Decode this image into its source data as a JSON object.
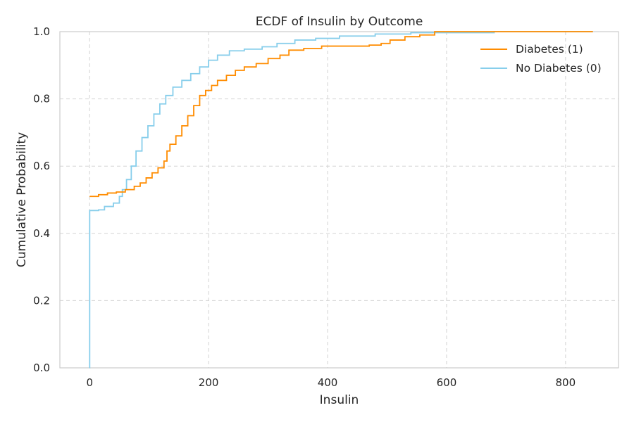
{
  "chart_data": {
    "type": "line",
    "title": "ECDF of Insulin by Outcome",
    "xlabel": "Insulin",
    "ylabel": "Cumulative Probability",
    "xlim": [
      -50,
      889
    ],
    "ylim": [
      0,
      1.0
    ],
    "xticks": [
      0,
      200,
      400,
      600,
      800
    ],
    "yticks": [
      0.0,
      0.2,
      0.4,
      0.6,
      0.8,
      1.0
    ],
    "xtick_labels": [
      "0",
      "200",
      "400",
      "600",
      "800"
    ],
    "ytick_labels": [
      "0.0",
      "0.2",
      "0.4",
      "0.6",
      "0.8",
      "1.0"
    ],
    "grid": true,
    "legend_position": "top-right",
    "series": [
      {
        "name": "Diabetes (1)",
        "color": "#ff8c00",
        "step": "post",
        "points": [
          [
            0,
            0.51
          ],
          [
            15,
            0.515
          ],
          [
            30,
            0.52
          ],
          [
            45,
            0.523
          ],
          [
            60,
            0.53
          ],
          [
            75,
            0.54
          ],
          [
            85,
            0.55
          ],
          [
            95,
            0.565
          ],
          [
            105,
            0.58
          ],
          [
            115,
            0.595
          ],
          [
            125,
            0.615
          ],
          [
            130,
            0.645
          ],
          [
            135,
            0.665
          ],
          [
            145,
            0.69
          ],
          [
            155,
            0.72
          ],
          [
            165,
            0.75
          ],
          [
            175,
            0.78
          ],
          [
            185,
            0.81
          ],
          [
            195,
            0.825
          ],
          [
            205,
            0.84
          ],
          [
            215,
            0.855
          ],
          [
            230,
            0.87
          ],
          [
            245,
            0.885
          ],
          [
            260,
            0.895
          ],
          [
            280,
            0.905
          ],
          [
            300,
            0.92
          ],
          [
            320,
            0.93
          ],
          [
            335,
            0.945
          ],
          [
            360,
            0.95
          ],
          [
            390,
            0.957
          ],
          [
            470,
            0.96
          ],
          [
            490,
            0.965
          ],
          [
            505,
            0.975
          ],
          [
            530,
            0.985
          ],
          [
            555,
            0.99
          ],
          [
            580,
            1.0
          ],
          [
            846,
            1.0
          ]
        ]
      },
      {
        "name": "No Diabetes (0)",
        "color": "#87ceeb",
        "step": "post",
        "points": [
          [
            0,
            0.0
          ],
          [
            0.1,
            0.468
          ],
          [
            15,
            0.47
          ],
          [
            25,
            0.48
          ],
          [
            40,
            0.49
          ],
          [
            50,
            0.51
          ],
          [
            55,
            0.53
          ],
          [
            62,
            0.56
          ],
          [
            70,
            0.6
          ],
          [
            78,
            0.645
          ],
          [
            88,
            0.685
          ],
          [
            98,
            0.72
          ],
          [
            108,
            0.755
          ],
          [
            118,
            0.785
          ],
          [
            128,
            0.81
          ],
          [
            140,
            0.835
          ],
          [
            155,
            0.855
          ],
          [
            170,
            0.875
          ],
          [
            185,
            0.895
          ],
          [
            200,
            0.915
          ],
          [
            215,
            0.93
          ],
          [
            235,
            0.943
          ],
          [
            260,
            0.948
          ],
          [
            290,
            0.955
          ],
          [
            315,
            0.965
          ],
          [
            345,
            0.975
          ],
          [
            380,
            0.98
          ],
          [
            420,
            0.987
          ],
          [
            480,
            0.993
          ],
          [
            540,
            0.997
          ],
          [
            680,
            1.0
          ],
          [
            846,
            1.0
          ]
        ]
      }
    ]
  }
}
